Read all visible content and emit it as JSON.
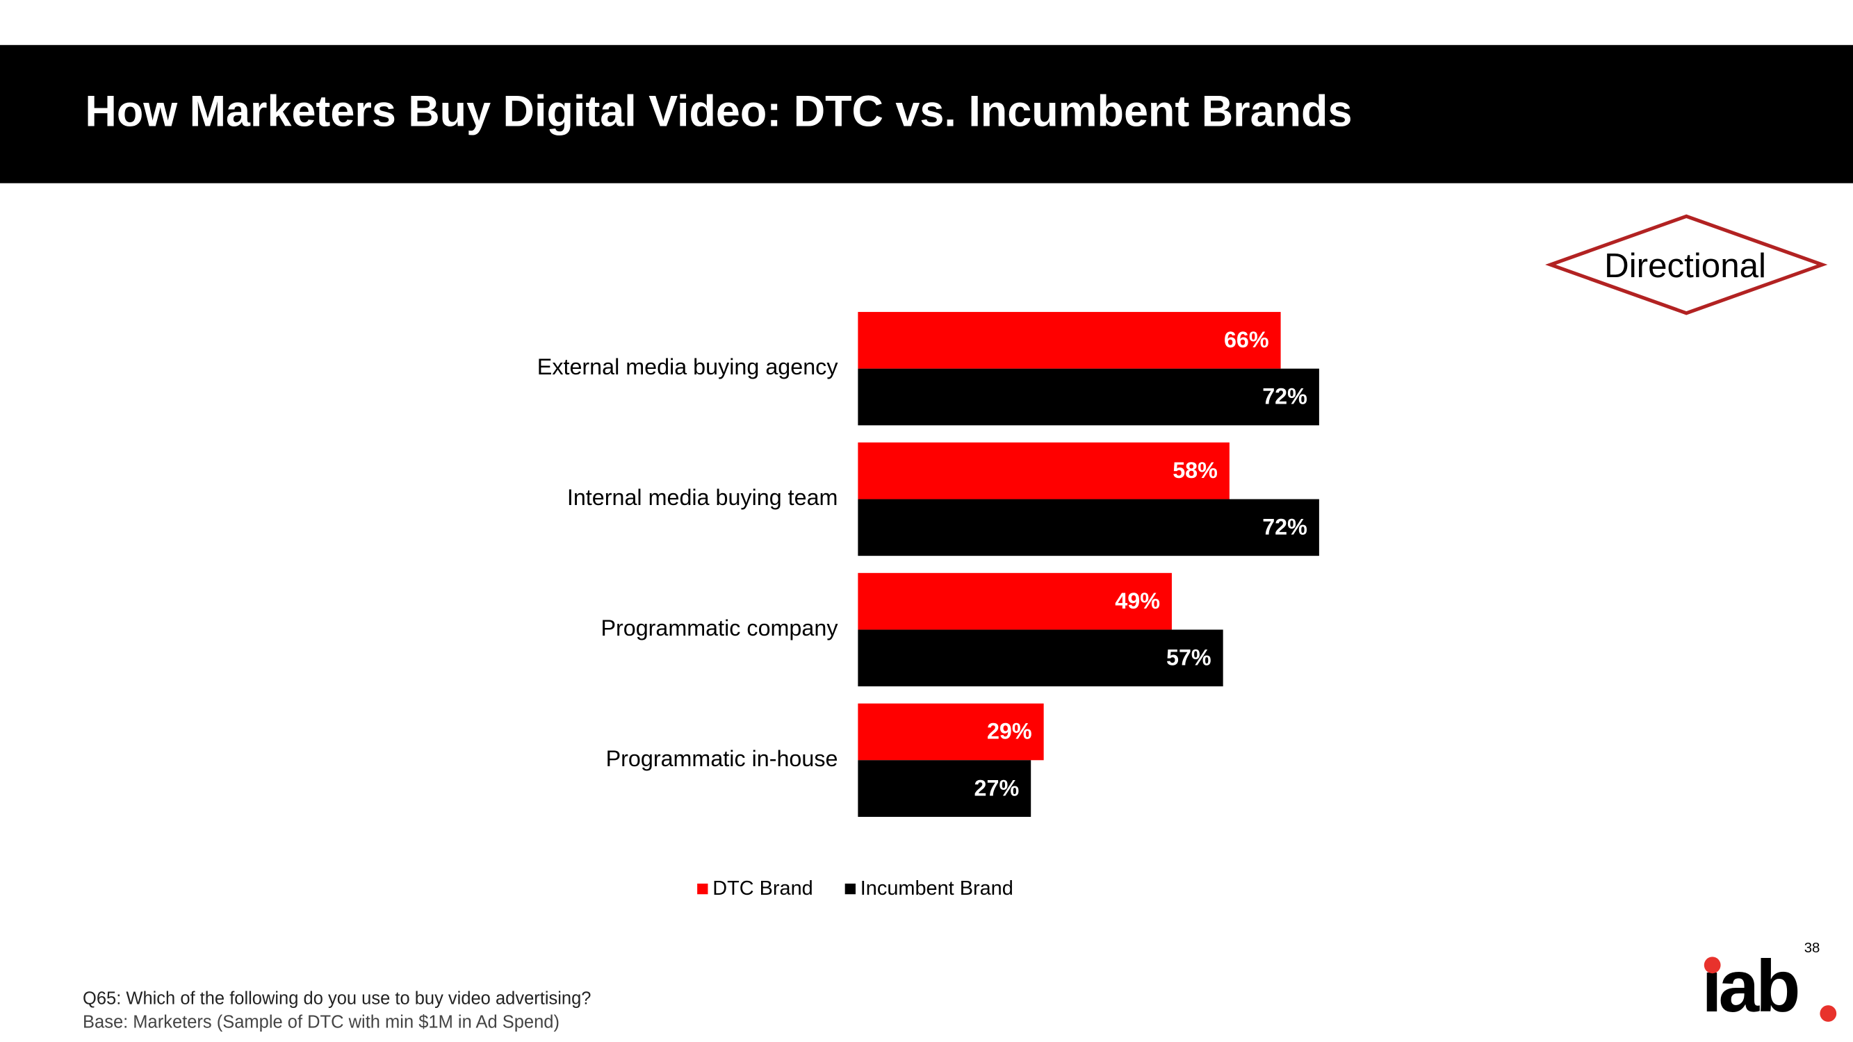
{
  "chart_data": {
    "type": "bar",
    "orientation": "horizontal",
    "title": "How Marketers Buy Digital Video:  DTC vs. Incumbent Brands",
    "categories": [
      "External media buying agency",
      "Internal media buying team",
      "Programmatic company",
      "Programmatic in-house"
    ],
    "series": [
      {
        "name": "DTC Brand",
        "color": "#ff0000",
        "values": [
          66,
          58,
          49,
          29
        ],
        "value_labels": [
          "66%",
          "58%",
          "49%",
          "29%"
        ]
      },
      {
        "name": "Incumbent Brand",
        "color": "#000000",
        "values": [
          72,
          72,
          57,
          27
        ],
        "value_labels": [
          "72%",
          "72%",
          "57%",
          "27%"
        ]
      }
    ],
    "legend": "bottom"
  },
  "badge": "Directional",
  "footnotes": [
    "Q65: Which of the following do you use to buy video advertising?",
    "Base: Marketers  (Sample of DTC with min $1M in Ad Spend)"
  ],
  "page_number": "38",
  "logo": "iab"
}
